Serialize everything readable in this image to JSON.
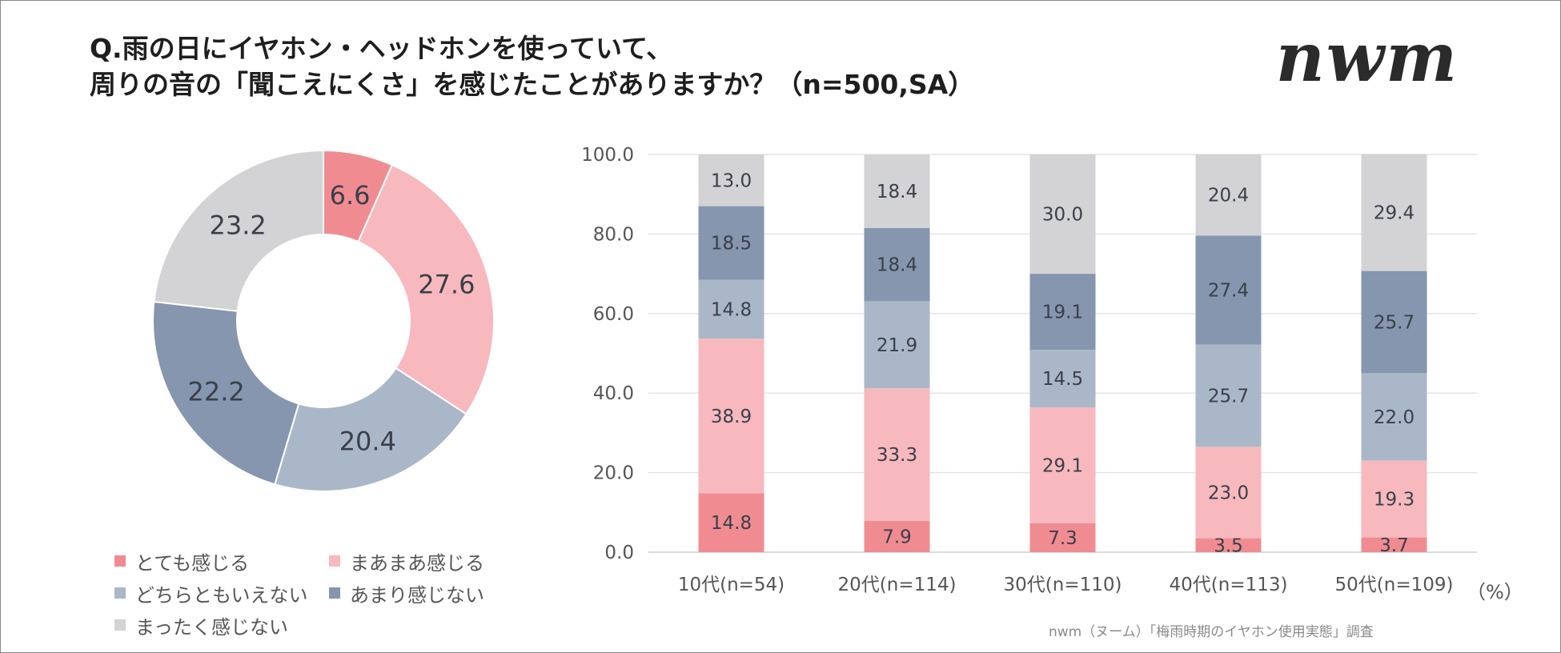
{
  "title": {
    "line1": "Q.雨の日にイヤホン・ヘッドホンを使っていて、",
    "line2": "周りの音の「聞こえにくさ」を感じたことがありますか？（n=500,SA）"
  },
  "logo": "nwm",
  "source": "nwm（ヌーム）「梅雨時期のイヤホン使用実態」調査",
  "unit": "（%）",
  "colors": {
    "totemo": "#f08c91",
    "maamaa": "#f7b9bd",
    "dochira": "#aab7c8",
    "amari": "#8596ae",
    "mattaku": "#d3d2d4"
  },
  "legend": [
    {
      "key": "totemo",
      "label": "とても感じる"
    },
    {
      "key": "maamaa",
      "label": "まあまあ感じる"
    },
    {
      "key": "dochira",
      "label": "どちらともいえない"
    },
    {
      "key": "amari",
      "label": "あまり感じない"
    },
    {
      "key": "mattaku",
      "label": "まったく感じない"
    }
  ],
  "chart_data": [
    {
      "type": "pie",
      "donut": true,
      "labels": [
        "とても感じる",
        "まあまあ感じる",
        "どちらともいえない",
        "あまり感じない",
        "まったく感じない"
      ],
      "values": [
        6.6,
        27.6,
        20.4,
        22.2,
        23.2
      ],
      "value_labels": [
        "6.6",
        "27.6",
        "20.4",
        "22.2",
        "23.2"
      ],
      "legend_position": "bottom"
    },
    {
      "type": "bar",
      "stacked": true,
      "categories": [
        "10代(n=54)",
        "20代(n=114)",
        "30代(n=110)",
        "40代(n=113)",
        "50代(n=109)"
      ],
      "series": [
        {
          "name": "とても感じる",
          "key": "totemo",
          "values": [
            14.8,
            7.9,
            7.3,
            3.5,
            3.7
          ],
          "labels": [
            "14.8",
            "7.9",
            "7.3",
            "3.5",
            "3.7"
          ]
        },
        {
          "name": "まあまあ感じる",
          "key": "maamaa",
          "values": [
            38.9,
            33.3,
            29.1,
            23.0,
            19.3
          ],
          "labels": [
            "38.9",
            "33.3",
            "29.1",
            "23.0",
            "19.3"
          ]
        },
        {
          "name": "どちらともいえない",
          "key": "dochira",
          "values": [
            14.8,
            21.9,
            14.5,
            25.7,
            22.0
          ],
          "labels": [
            "14.8",
            "21.9",
            "14.5",
            "25.7",
            "22.0"
          ]
        },
        {
          "name": "あまり感じない",
          "key": "amari",
          "values": [
            18.5,
            18.4,
            19.1,
            27.4,
            25.7
          ],
          "labels": [
            "18.5",
            "18.4",
            "19.1",
            "27.4",
            "25.7"
          ]
        },
        {
          "name": "まったく感じない",
          "key": "mattaku",
          "values": [
            13.0,
            18.4,
            30.0,
            20.4,
            29.4
          ],
          "labels": [
            "13.0",
            "18.4",
            "30.0",
            "20.4",
            "29.4"
          ]
        }
      ],
      "ylim": [
        0,
        100
      ],
      "yticks": [
        "0.0",
        "20.0",
        "40.0",
        "60.0",
        "80.0",
        "100.0"
      ],
      "grid": true
    }
  ]
}
